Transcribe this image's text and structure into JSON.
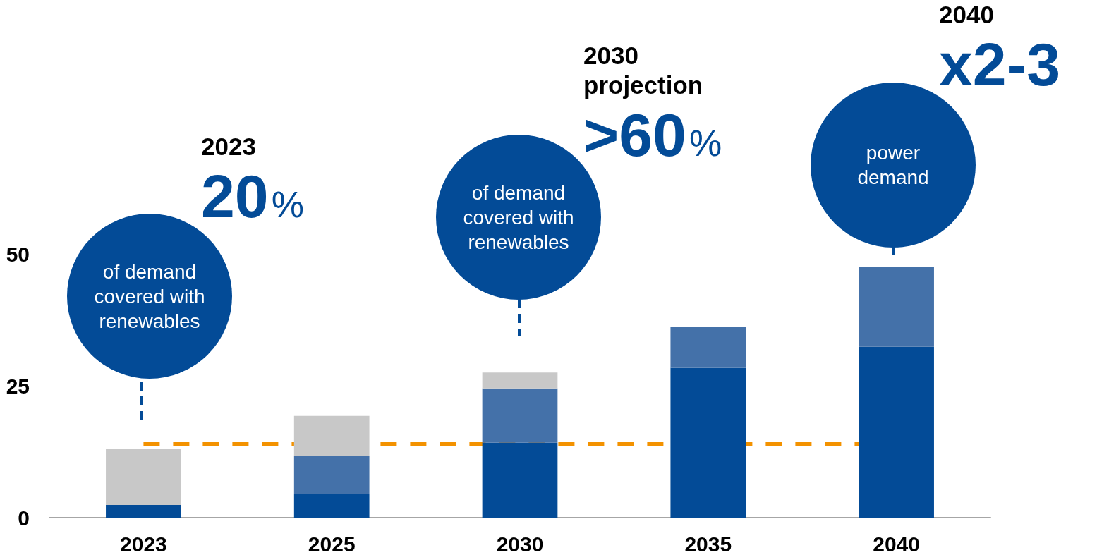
{
  "chart_data": {
    "type": "bar",
    "categories": [
      "2023",
      "2025",
      "2030",
      "2035",
      "2040"
    ],
    "stacked": true,
    "series": [
      {
        "color": "#034b97",
        "values": [
          2.4,
          4.5,
          14.2,
          28.4,
          32.4
        ]
      },
      {
        "color": "#4471a9",
        "values": [
          null,
          7.2,
          10.3,
          7.8,
          15.2
        ]
      },
      {
        "color": "#c8c8c8",
        "values": [
          10.6,
          7.6,
          3,
          null,
          null
        ]
      }
    ],
    "ref_lines": [
      {
        "axis": "y",
        "value": 14,
        "color": "#f39200",
        "line_style": "dashed"
      }
    ],
    "ylim": [
      0,
      50
    ],
    "yticks": [
      0,
      25,
      50
    ],
    "annotations": [
      "2023",
      "20%",
      "of demand covered with renewables",
      "2030 projection",
      ">60%",
      "of demand covered with renewables",
      "2040",
      "x2-3",
      "power demand"
    ]
  }
}
